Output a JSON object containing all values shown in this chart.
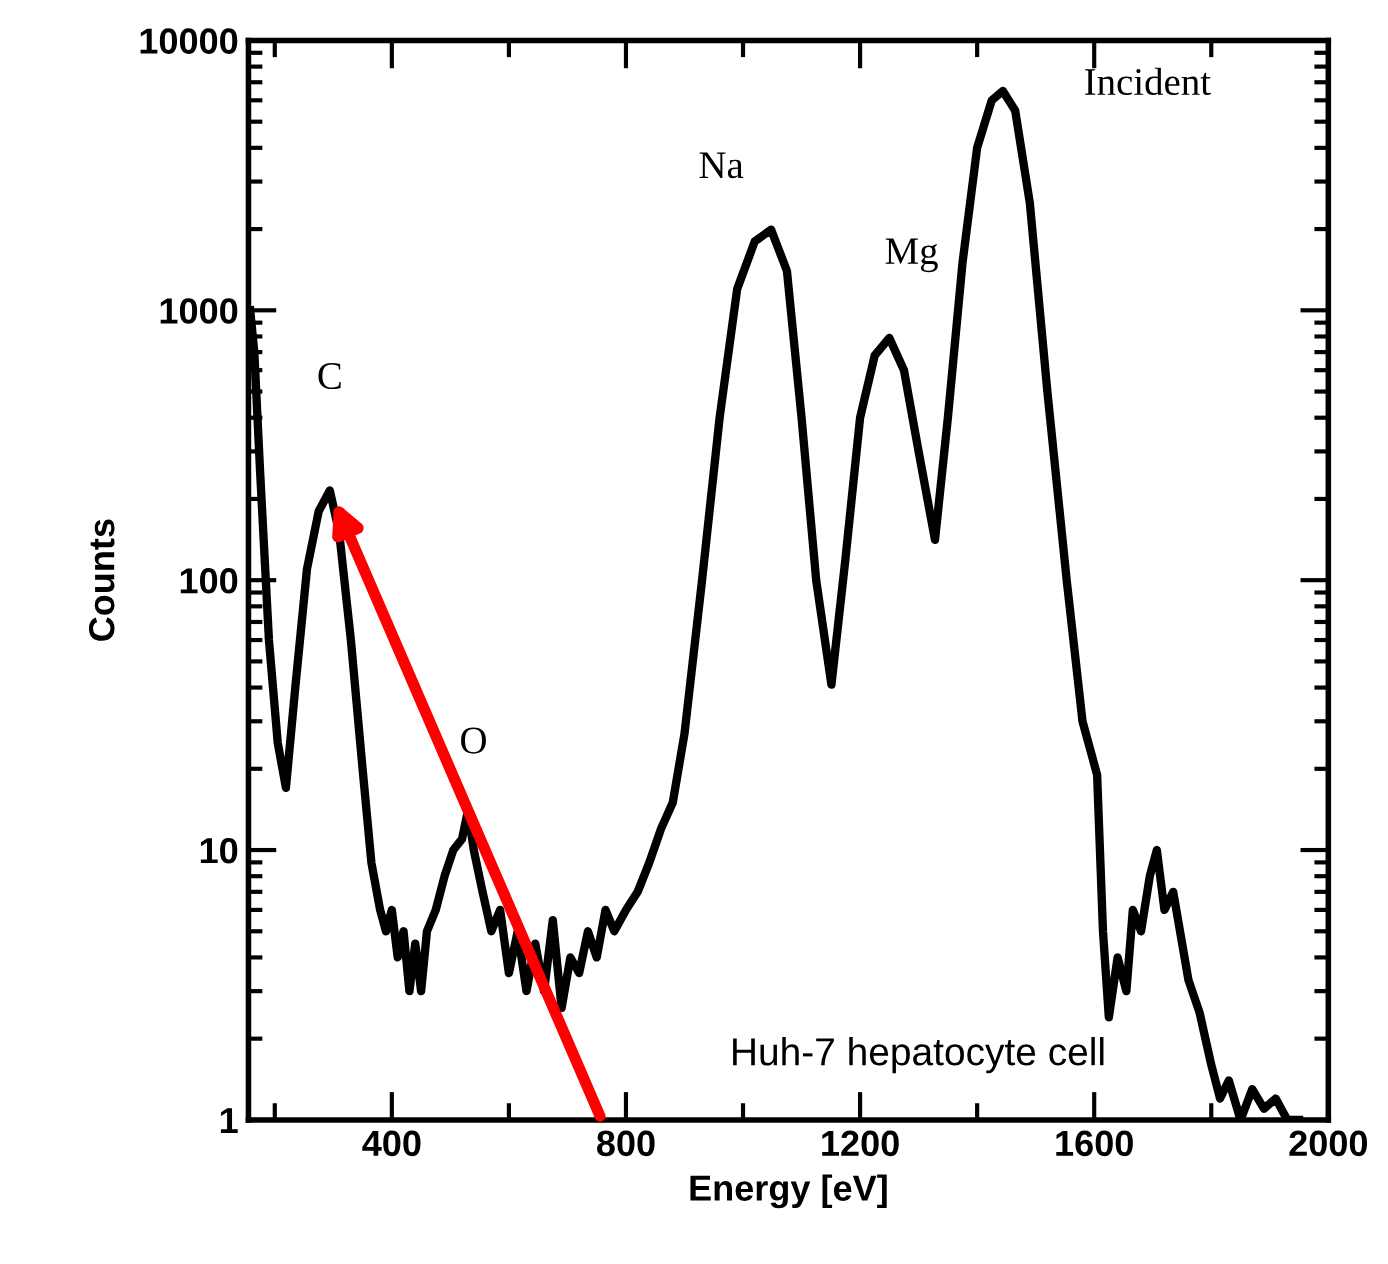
{
  "chart_data": {
    "type": "line",
    "xlabel": "Energy [eV]",
    "ylabel": "Counts",
    "x": [
      158,
      165,
      175,
      190,
      205,
      219,
      235,
      255,
      275,
      294,
      310,
      330,
      350,
      365,
      380,
      390,
      400,
      410,
      420,
      430,
      440,
      450,
      460,
      475,
      490,
      505,
      520,
      530,
      540,
      555,
      570,
      585,
      600,
      615,
      630,
      645,
      660,
      675,
      690,
      705,
      720,
      735,
      750,
      765,
      780,
      800,
      820,
      840,
      860,
      880,
      900,
      930,
      960,
      990,
      1020,
      1048,
      1075,
      1100,
      1125,
      1151,
      1175,
      1200,
      1225,
      1250,
      1275,
      1300,
      1328,
      1350,
      1375,
      1400,
      1425,
      1444,
      1465,
      1490,
      1520,
      1553,
      1580,
      1605,
      1615,
      1625,
      1640,
      1655,
      1666,
      1680,
      1695,
      1707,
      1720,
      1735,
      1761,
      1780,
      1800,
      1815,
      1830,
      1850,
      1870,
      1890,
      1910,
      1930,
      1950
    ],
    "series": [
      {
        "color": "#000000",
        "values": [
          1000,
          700,
          250,
          60,
          25,
          17,
          40,
          110,
          180,
          215,
          150,
          60,
          20,
          9,
          6,
          5,
          6,
          4,
          5,
          3,
          4.5,
          3,
          5,
          6,
          8,
          10,
          11,
          14,
          10,
          7,
          5,
          6,
          3.5,
          5,
          3,
          4.5,
          3,
          5.5,
          2.6,
          4,
          3.5,
          5,
          4,
          6,
          5,
          6,
          7,
          9,
          12,
          15,
          27,
          100,
          400,
          1200,
          1800,
          1990,
          1400,
          400,
          100,
          41,
          120,
          400,
          680,
          790,
          600,
          300,
          141,
          400,
          1500,
          4000,
          6000,
          6500,
          5500,
          2500,
          500,
          100,
          30,
          19,
          5,
          2.4,
          4,
          3,
          6,
          5,
          8,
          10,
          6,
          7,
          3.3,
          2.5,
          1.6,
          1.2,
          1.4,
          1,
          1.3,
          1.1,
          1.2,
          1,
          1
        ]
      }
    ],
    "xlim": [
      155,
      2000
    ],
    "ylim": [
      1,
      10000
    ],
    "log": "y",
    "xticks": [
      {
        "value": 200,
        "label": null
      },
      400,
      {
        "value": 600,
        "label": null
      },
      800,
      {
        "value": 1000,
        "label": null
      },
      1200,
      {
        "value": 1400,
        "label": null
      },
      1600,
      {
        "value": 1800,
        "label": null
      },
      2000
    ],
    "yticks": [
      1,
      10,
      100,
      1000,
      10000
    ],
    "annotations": [
      {
        "text": "C",
        "x": 294,
        "y": 215
      },
      {
        "text": "O",
        "x": 530,
        "y": 14
      },
      {
        "text": "Na",
        "x": 1048,
        "y": 1990
      },
      {
        "text": "Mg",
        "x": 1250,
        "y": 790
      },
      {
        "text": "Incident",
        "x": 1444,
        "y": 6500
      },
      "Huh-7 hepatocyte cell"
    ]
  }
}
